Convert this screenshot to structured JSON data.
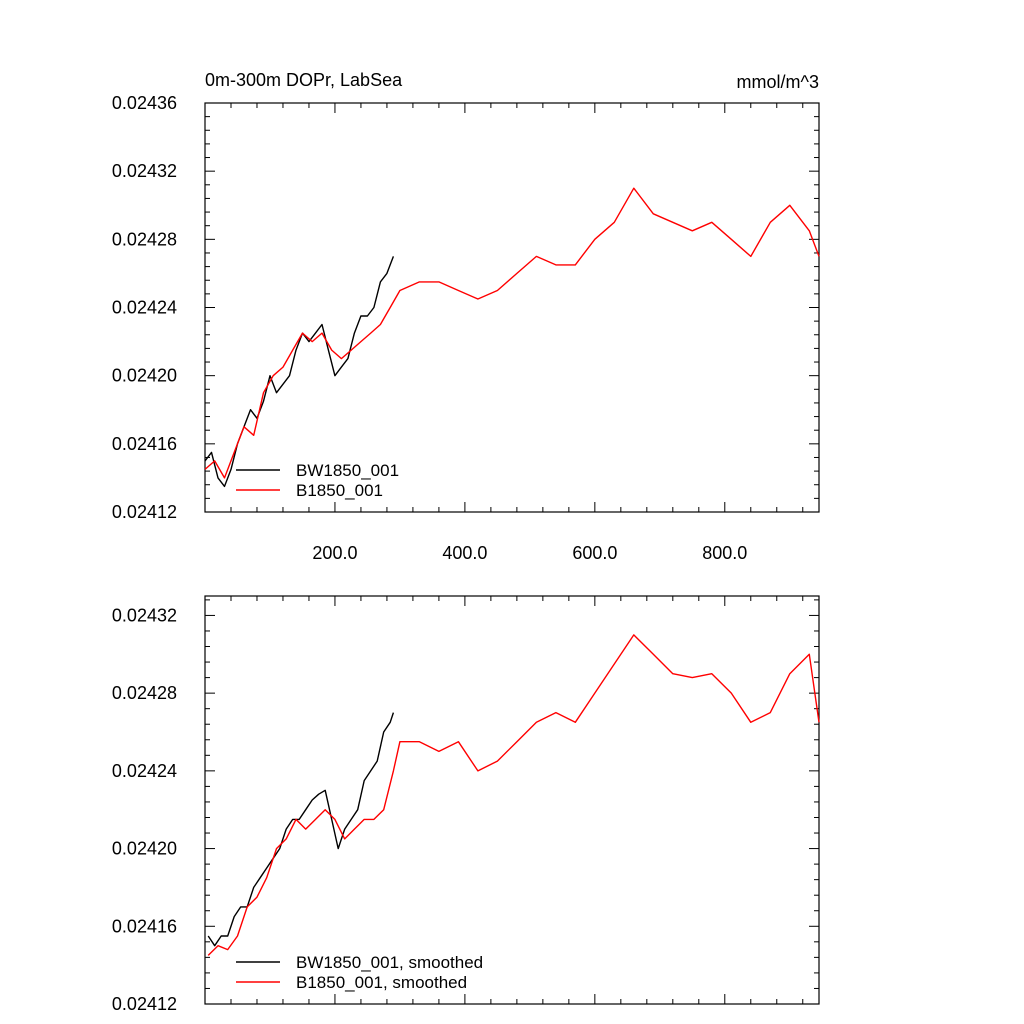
{
  "chart_data": [
    {
      "type": "line",
      "title": "0m-300m DOPr, LabSea",
      "units": "mmol/m^3",
      "xlim": [
        0,
        945
      ],
      "ylim": [
        0.02412,
        0.02436
      ],
      "xticks": [
        200,
        400,
        600,
        800
      ],
      "xtick_labels": [
        "200.0",
        "400.0",
        "600.0",
        "800.0"
      ],
      "yticks": [
        0.02412,
        0.02416,
        0.0242,
        0.02424,
        0.02428,
        0.02432,
        0.02436
      ],
      "ytick_labels": [
        "0.02412",
        "0.02416",
        "0.02420",
        "0.02424",
        "0.02428",
        "0.02432",
        "0.02436"
      ],
      "legend_position": "bottom-left",
      "series": [
        {
          "name": "BW1850_001",
          "color": "#000000",
          "x": [
            0,
            10,
            20,
            30,
            40,
            50,
            60,
            70,
            80,
            90,
            100,
            110,
            120,
            130,
            140,
            150,
            160,
            170,
            180,
            190,
            200,
            210,
            220,
            230,
            240,
            250,
            260,
            270,
            280,
            290
          ],
          "y": [
            0.02415,
            0.024155,
            0.02414,
            0.024135,
            0.024145,
            0.02416,
            0.02417,
            0.02418,
            0.024175,
            0.024185,
            0.0242,
            0.02419,
            0.024195,
            0.0242,
            0.024215,
            0.024225,
            0.02422,
            0.024225,
            0.02423,
            0.024215,
            0.0242,
            0.024205,
            0.02421,
            0.024225,
            0.024235,
            0.024235,
            0.02424,
            0.024255,
            0.02426,
            0.02427
          ]
        },
        {
          "name": "B1850_001",
          "color": "#ff0000",
          "x": [
            0,
            15,
            30,
            45,
            60,
            75,
            90,
            105,
            120,
            135,
            150,
            165,
            180,
            195,
            210,
            225,
            240,
            255,
            270,
            285,
            300,
            330,
            360,
            390,
            420,
            450,
            480,
            510,
            540,
            570,
            600,
            630,
            660,
            690,
            720,
            750,
            780,
            810,
            840,
            870,
            900,
            930,
            945
          ],
          "y": [
            0.024145,
            0.02415,
            0.02414,
            0.024155,
            0.02417,
            0.024165,
            0.02419,
            0.0242,
            0.024205,
            0.024215,
            0.024225,
            0.02422,
            0.024225,
            0.024215,
            0.02421,
            0.024215,
            0.02422,
            0.024225,
            0.02423,
            0.02424,
            0.02425,
            0.024255,
            0.024255,
            0.02425,
            0.024245,
            0.02425,
            0.02426,
            0.02427,
            0.024265,
            0.024265,
            0.02428,
            0.02429,
            0.02431,
            0.024295,
            0.02429,
            0.024285,
            0.02429,
            0.02428,
            0.02427,
            0.02429,
            0.0243,
            0.024285,
            0.02427
          ]
        }
      ]
    },
    {
      "type": "line",
      "xlim": [
        0,
        945
      ],
      "ylim": [
        0.02412,
        0.02433
      ],
      "xticks": [
        200,
        400,
        600,
        800
      ],
      "yticks": [
        0.02412,
        0.02416,
        0.0242,
        0.02424,
        0.02428,
        0.02432
      ],
      "ytick_labels": [
        "0.02412",
        "0.02416",
        "0.02420",
        "0.02424",
        "0.02428",
        "0.02432"
      ],
      "legend_position": "bottom-left",
      "series": [
        {
          "name": "BW1850_001, smoothed",
          "color": "#000000",
          "x": [
            5,
            15,
            25,
            35,
            45,
            55,
            65,
            75,
            85,
            95,
            105,
            115,
            125,
            135,
            145,
            155,
            165,
            175,
            185,
            195,
            205,
            215,
            225,
            235,
            245,
            255,
            265,
            275,
            285,
            290
          ],
          "y": [
            0.024155,
            0.02415,
            0.024155,
            0.024155,
            0.024165,
            0.02417,
            0.02417,
            0.02418,
            0.024185,
            0.02419,
            0.024195,
            0.0242,
            0.02421,
            0.024215,
            0.024215,
            0.02422,
            0.024225,
            0.024228,
            0.02423,
            0.024215,
            0.0242,
            0.02421,
            0.024215,
            0.02422,
            0.024235,
            0.02424,
            0.024245,
            0.02426,
            0.024265,
            0.02427
          ]
        },
        {
          "name": "B1850_001, smoothed",
          "color": "#ff0000",
          "x": [
            5,
            20,
            35,
            50,
            65,
            80,
            95,
            110,
            125,
            140,
            155,
            170,
            185,
            200,
            215,
            230,
            245,
            260,
            275,
            290,
            300,
            330,
            360,
            390,
            420,
            450,
            480,
            510,
            540,
            570,
            600,
            630,
            660,
            690,
            720,
            750,
            780,
            810,
            840,
            870,
            900,
            930,
            945
          ],
          "y": [
            0.024145,
            0.02415,
            0.024148,
            0.024155,
            0.02417,
            0.024175,
            0.024185,
            0.0242,
            0.024205,
            0.024215,
            0.02421,
            0.024215,
            0.02422,
            0.024215,
            0.024205,
            0.02421,
            0.024215,
            0.024215,
            0.02422,
            0.02424,
            0.024255,
            0.024255,
            0.02425,
            0.024255,
            0.02424,
            0.024245,
            0.024255,
            0.024265,
            0.02427,
            0.024265,
            0.02428,
            0.024295,
            0.02431,
            0.0243,
            0.02429,
            0.024288,
            0.02429,
            0.02428,
            0.024265,
            0.02427,
            0.02429,
            0.0243,
            0.024265
          ]
        }
      ]
    }
  ]
}
